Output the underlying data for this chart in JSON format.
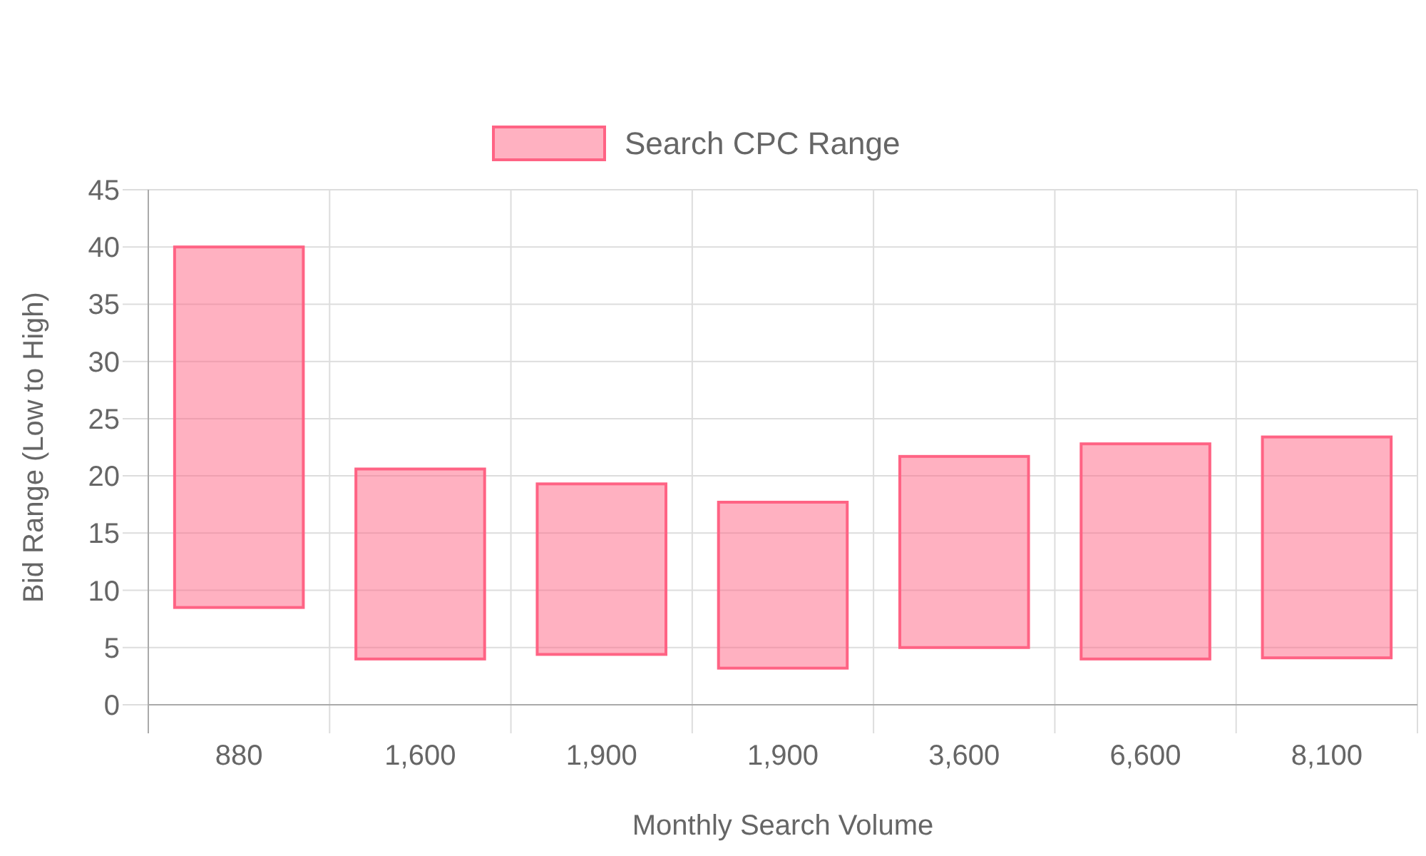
{
  "chart_data": {
    "type": "bar",
    "xlabel": "Monthly Search Volume",
    "ylabel": "Bid Range (Low to High)",
    "categories": [
      "880",
      "1,600",
      "1,900",
      "1,900",
      "3,600",
      "6,600",
      "8,100"
    ],
    "series": [
      {
        "name": "Search CPC Range",
        "color": "#ff6384",
        "values": [
          31.5,
          16.6,
          14.9,
          14.5,
          16.7,
          18.8,
          19.3
        ],
        "base": [
          8.5,
          4.0,
          4.4,
          3.2,
          5.0,
          4.0,
          4.1
        ]
      }
    ],
    "ylim": [
      0,
      45
    ],
    "yticks": [
      0,
      5,
      10,
      15,
      20,
      25,
      30,
      35,
      40,
      45
    ],
    "grid": true,
    "legend": "top"
  }
}
